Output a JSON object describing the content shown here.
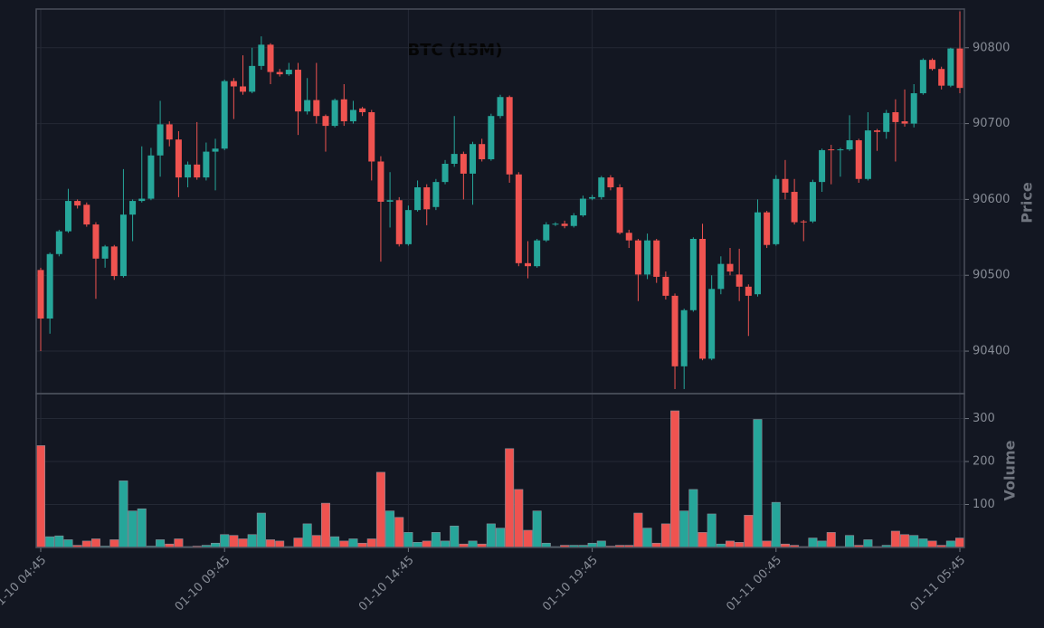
{
  "chart_data": {
    "type": "candlestick",
    "title": "BTC (15M)",
    "categories": [
      "01-10 04:45",
      null,
      null,
      null,
      null,
      null,
      null,
      null,
      null,
      null,
      null,
      null,
      null,
      null,
      null,
      null,
      null,
      null,
      null,
      null,
      "01-10 09:45",
      null,
      null,
      null,
      null,
      null,
      null,
      null,
      null,
      null,
      null,
      null,
      null,
      null,
      null,
      null,
      null,
      null,
      null,
      null,
      "01-10 14:45",
      null,
      null,
      null,
      null,
      null,
      null,
      null,
      null,
      null,
      null,
      null,
      null,
      null,
      null,
      null,
      null,
      null,
      null,
      null,
      "01-10 19:45",
      null,
      null,
      null,
      null,
      null,
      null,
      null,
      null,
      null,
      null,
      null,
      null,
      null,
      null,
      null,
      null,
      null,
      null,
      null,
      "01-11 00:45",
      null,
      null,
      null,
      null,
      null,
      null,
      null,
      null,
      null,
      null,
      null,
      null,
      null,
      null,
      null,
      null,
      null,
      null,
      null,
      "01-11 05:45"
    ],
    "open": [
      90507,
      90443,
      90528,
      90558,
      90598,
      90593,
      90567,
      90522,
      90538,
      90499,
      90580,
      90598,
      90601,
      90658,
      90699,
      90679,
      90629,
      90646,
      90629,
      90663,
      90667,
      90756,
      90749,
      90742,
      90776,
      90804,
      90768,
      90765,
      90771,
      90716,
      90731,
      90710,
      90697,
      90732,
      90703,
      90720,
      90715,
      90650,
      90597,
      90599,
      90541,
      90586,
      90616,
      90590,
      90623,
      90647,
      90660,
      90634,
      90673,
      90653,
      90710,
      90735,
      90633,
      90516,
      90512,
      90546,
      90567,
      90568,
      90565,
      90579,
      90601,
      90603,
      90629,
      90616,
      90556,
      90546,
      90501,
      90546,
      90498,
      90473,
      90380,
      90454,
      90548,
      90390,
      90482,
      90515,
      90501,
      90485,
      90475,
      90583,
      90541,
      90627,
      90610,
      90571,
      90571,
      90623,
      90666,
      90665,
      90666,
      90678,
      90627,
      90691,
      90689,
      90715,
      90703,
      90700,
      90740,
      90784,
      90772,
      90750,
      90799
    ],
    "high": [
      90510,
      90530,
      90560,
      90614,
      90600,
      90596,
      90570,
      90540,
      90540,
      90640,
      90600,
      90670,
      90668,
      90730,
      90703,
      90690,
      90650,
      90702,
      90675,
      90680,
      90758,
      90760,
      90790,
      90800,
      90815,
      90806,
      90772,
      90780,
      90780,
      90760,
      90780,
      90712,
      90733,
      90752,
      90730,
      90722,
      90718,
      90657,
      90636,
      90603,
      90592,
      90625,
      90620,
      90627,
      90652,
      90710,
      90663,
      90676,
      90680,
      90713,
      90738,
      90737,
      90636,
      90545,
      90548,
      90570,
      90570,
      90572,
      90582,
      90605,
      90606,
      90631,
      90632,
      90620,
      90560,
      90548,
      90555,
      90548,
      90505,
      90476,
      90456,
      90550,
      90568,
      90500,
      90525,
      90536,
      90535,
      90488,
      90600,
      90585,
      90632,
      90652,
      90627,
      90573,
      90626,
      90667,
      90672,
      90668,
      90711,
      90680,
      90715,
      90693,
      90718,
      90732,
      90745,
      90752,
      90786,
      90786,
      90775,
      90800,
      90848
    ],
    "low": [
      90400,
      90423,
      90525,
      90556,
      90588,
      90564,
      90469,
      90510,
      90494,
      90497,
      90545,
      90596,
      90599,
      90630,
      90670,
      90603,
      90616,
      90626,
      90625,
      90612,
      90665,
      90706,
      90738,
      90740,
      90771,
      90752,
      90762,
      90763,
      90685,
      90712,
      90700,
      90663,
      90695,
      90697,
      90700,
      90710,
      90625,
      90518,
      90563,
      90538,
      90539,
      90584,
      90566,
      90586,
      90620,
      90643,
      90600,
      90593,
      90650,
      90651,
      90707,
      90622,
      90512,
      90496,
      90510,
      90544,
      90565,
      90562,
      90563,
      90577,
      90599,
      90600,
      90612,
      90554,
      90536,
      90466,
      90495,
      90490,
      90468,
      90350,
      90350,
      90452,
      90388,
      90388,
      90475,
      90500,
      90466,
      90420,
      90472,
      90536,
      90539,
      90600,
      90567,
      90545,
      90569,
      90610,
      90620,
      90630,
      90664,
      90622,
      90625,
      90664,
      90680,
      90650,
      90696,
      90695,
      90738,
      90770,
      90745,
      90748,
      90740
    ],
    "close": [
      90443,
      90528,
      90558,
      90598,
      90592,
      90567,
      90522,
      90538,
      90499,
      90580,
      90598,
      90601,
      90658,
      90699,
      90679,
      90629,
      90646,
      90629,
      90663,
      90667,
      90756,
      90749,
      90742,
      90776,
      90804,
      90768,
      90765,
      90771,
      90716,
      90731,
      90710,
      90697,
      90731,
      90703,
      90718,
      90715,
      90650,
      90597,
      90599,
      90541,
      90586,
      90616,
      90587,
      90623,
      90647,
      90660,
      90634,
      90673,
      90653,
      90710,
      90735,
      90633,
      90516,
      90512,
      90546,
      90567,
      90568,
      90565,
      90579,
      90601,
      90603,
      90629,
      90616,
      90556,
      90546,
      90501,
      90546,
      90498,
      90473,
      90380,
      90454,
      90548,
      90390,
      90482,
      90515,
      90505,
      90485,
      90473,
      90583,
      90540,
      90627,
      90609,
      90570,
      90570,
      90623,
      90665,
      90665,
      90666,
      90678,
      90627,
      90691,
      90689,
      90714,
      90702,
      90700,
      90740,
      90784,
      90772,
      90750,
      90799,
      90747
    ],
    "volume": [
      237,
      25,
      27,
      18,
      5,
      15,
      20,
      3,
      18,
      155,
      85,
      90,
      3,
      18,
      8,
      20,
      2,
      3,
      5,
      10,
      30,
      28,
      20,
      30,
      80,
      18,
      15,
      2,
      22,
      55,
      28,
      103,
      25,
      15,
      20,
      10,
      20,
      175,
      85,
      70,
      35,
      12,
      15,
      35,
      15,
      50,
      8,
      15,
      8,
      55,
      45,
      230,
      135,
      40,
      85,
      10,
      2,
      5,
      5,
      5,
      10,
      15,
      3,
      5,
      5,
      80,
      45,
      10,
      55,
      318,
      85,
      135,
      35,
      78,
      8,
      15,
      12,
      75,
      298,
      15,
      105,
      8,
      5,
      2,
      22,
      15,
      35,
      2,
      28,
      5,
      18,
      2,
      5,
      38,
      30,
      28,
      20,
      15,
      5,
      15,
      22
    ],
    "up_color": "#26a69a",
    "down_color": "#ef5350",
    "ylabel": "Price",
    "ylim": [
      90344,
      90851
    ],
    "yticks": [
      90400,
      90500,
      90600,
      90700,
      90800
    ],
    "volume_label": "Volume",
    "volume_ylim": [
      0,
      358
    ],
    "volume_yticks": [
      100,
      200,
      300
    ],
    "grid": true
  }
}
